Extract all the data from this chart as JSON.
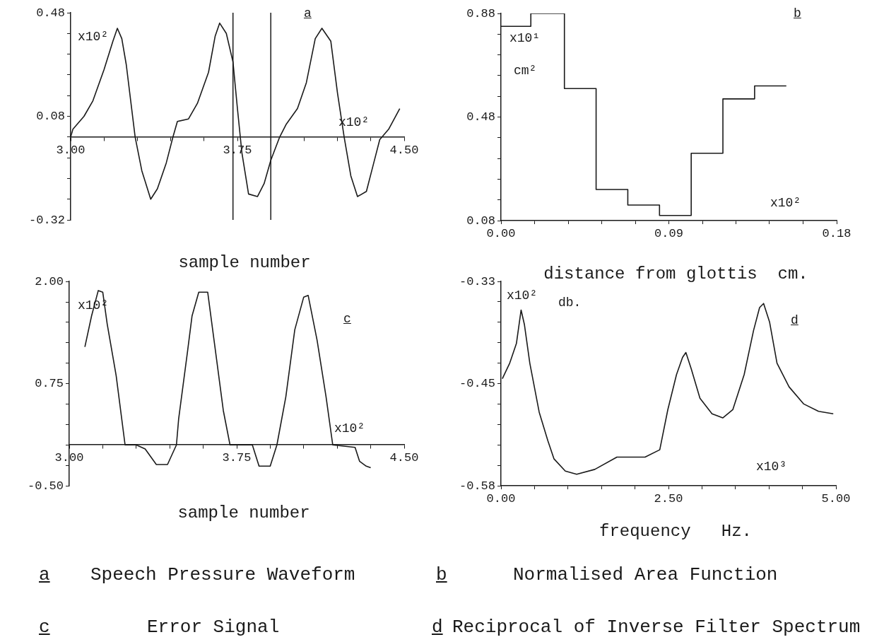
{
  "chart_data": [
    {
      "type": "line",
      "title": "Speech Pressure Waveform",
      "xlabel": "sample number",
      "annotations": [
        "a",
        "a",
        "x10²",
        "x10²"
      ],
      "color": "#1a1a1a",
      "x": [
        3.0,
        3.01,
        3.06,
        3.1,
        3.15,
        3.19,
        3.21,
        3.23,
        3.25,
        3.29,
        3.32,
        3.36,
        3.39,
        3.43,
        3.46,
        3.48,
        3.53,
        3.57,
        3.62,
        3.65,
        3.67,
        3.7,
        3.73,
        3.75,
        3.77,
        3.8,
        3.84,
        3.87,
        3.9,
        3.94,
        3.97,
        4.02,
        4.06,
        4.1,
        4.13,
        4.17,
        4.2,
        4.23,
        4.26,
        4.29,
        4.33,
        4.36,
        4.39,
        4.43,
        4.48
      ],
      "values": [
        0.0,
        0.03,
        0.08,
        0.14,
        0.26,
        0.37,
        0.42,
        0.38,
        0.28,
        0.0,
        -0.13,
        -0.24,
        -0.2,
        -0.1,
        0.0,
        0.06,
        0.07,
        0.13,
        0.25,
        0.39,
        0.44,
        0.4,
        0.29,
        0.11,
        -0.06,
        -0.22,
        -0.23,
        -0.18,
        -0.09,
        0.0,
        0.05,
        0.11,
        0.21,
        0.38,
        0.42,
        0.37,
        0.17,
        0.0,
        -0.15,
        -0.23,
        -0.21,
        -0.11,
        -0.01,
        0.03,
        0.11
      ],
      "xlim": [
        3.0,
        4.5
      ],
      "ylim": [
        -0.32,
        0.48
      ],
      "xticks": [
        {
          "value": 3.0,
          "label": "3.00"
        },
        {
          "value": 3.15,
          "label": null
        },
        {
          "value": 3.3,
          "label": null
        },
        {
          "value": 3.45,
          "label": null
        },
        {
          "value": 3.6,
          "label": null
        },
        {
          "value": 3.75,
          "label": "3.75"
        },
        {
          "value": 3.9,
          "label": null
        },
        {
          "value": 4.05,
          "label": null
        },
        {
          "value": 4.2,
          "label": null
        },
        {
          "value": 4.35,
          "label": null
        },
        {
          "value": 4.5,
          "label": "4.50"
        }
      ],
      "yticks": [
        -0.32,
        {
          "value": -0.24,
          "label": null
        },
        {
          "value": -0.16,
          "label": null
        },
        {
          "value": -0.08,
          "label": null
        },
        {
          "value": 0,
          "label": null
        },
        0.08,
        {
          "value": 0.16,
          "label": null
        },
        {
          "value": 0.24,
          "label": null
        },
        {
          "value": 0.32,
          "label": null
        },
        {
          "value": 0.4,
          "label": null
        },
        0.48
      ],
      "ref_lines": [
        {
          "axis": "x",
          "value": 3.73
        },
        {
          "axis": "x",
          "value": 3.9
        }
      ]
    },
    {
      "type": "step",
      "title": "Normalised Area Function",
      "xlabel": "distance from glottis  cm.",
      "annotations": [
        "b",
        "b",
        "x10¹",
        "cm²",
        "x10²"
      ],
      "color": "#1a1a1a",
      "x": [
        0,
        0.016,
        0.034,
        0.051,
        0.068,
        0.085,
        0.102,
        0.119,
        0.136,
        0.153
      ],
      "values": [
        0.83,
        0.88,
        0.59,
        0.2,
        0.14,
        0.1,
        0.34,
        0.55,
        0.6,
        0.6
      ],
      "xlim": [
        0,
        0.18
      ],
      "ylim": [
        0.08,
        0.88
      ],
      "xticks": [
        {
          "value": 0,
          "label": "0.00"
        },
        {
          "value": 0.018,
          "label": null
        },
        {
          "value": 0.036,
          "label": null
        },
        {
          "value": 0.054,
          "label": null
        },
        {
          "value": 0.072,
          "label": null
        },
        0.09,
        {
          "value": 0.108,
          "label": null
        },
        {
          "value": 0.126,
          "label": null
        },
        {
          "value": 0.144,
          "label": null
        },
        {
          "value": 0.162,
          "label": null
        },
        0.18
      ],
      "yticks": [
        0.08,
        {
          "value": 0.16,
          "label": null
        },
        {
          "value": 0.24,
          "label": null
        },
        {
          "value": 0.32,
          "label": null
        },
        {
          "value": 0.4,
          "label": null
        },
        0.48,
        {
          "value": 0.56,
          "label": null
        },
        {
          "value": 0.64,
          "label": null
        },
        {
          "value": 0.72,
          "label": null
        },
        {
          "value": 0.8,
          "label": null
        },
        0.88
      ]
    },
    {
      "type": "line",
      "title": "Error Signal",
      "xlabel": "sample number",
      "annotations": [
        "c",
        "c",
        "x10²",
        "x10²"
      ],
      "color": "#1a1a1a",
      "x": [
        3.07,
        3.1,
        3.13,
        3.15,
        3.17,
        3.21,
        3.25,
        3.3,
        3.34,
        3.39,
        3.44,
        3.48,
        3.49,
        3.53,
        3.55,
        3.58,
        3.62,
        3.65,
        3.69,
        3.72,
        3.82,
        3.85,
        3.9,
        3.93,
        3.97,
        4.01,
        4.05,
        4.07,
        4.11,
        4.15,
        4.18,
        4.28,
        4.3,
        4.33,
        4.35
      ],
      "values": [
        1.2,
        1.58,
        1.89,
        1.87,
        1.48,
        0.85,
        0.0,
        0.0,
        -0.05,
        -0.24,
        -0.24,
        0.0,
        0.32,
        1.15,
        1.58,
        1.87,
        1.87,
        1.25,
        0.42,
        0.0,
        0.0,
        -0.26,
        -0.26,
        0.0,
        0.59,
        1.41,
        1.81,
        1.83,
        1.28,
        0.59,
        0.0,
        -0.03,
        -0.2,
        -0.26,
        -0.28
      ],
      "xlim": [
        3.0,
        4.5
      ],
      "ylim": [
        -0.5,
        2.0
      ],
      "xticks": [
        {
          "value": 3.0,
          "label": "3.00"
        },
        {
          "value": 3.15,
          "label": null
        },
        {
          "value": 3.3,
          "label": null
        },
        {
          "value": 3.45,
          "label": null
        },
        {
          "value": 3.6,
          "label": null
        },
        {
          "value": 3.75,
          "label": "3.75"
        },
        {
          "value": 3.9,
          "label": null
        },
        {
          "value": 4.05,
          "label": null
        },
        {
          "value": 4.2,
          "label": null
        },
        {
          "value": 4.35,
          "label": null
        },
        {
          "value": 4.5,
          "label": "4.50"
        }
      ],
      "yticks": [
        {
          "value": -0.5,
          "label": "-0.50"
        },
        {
          "value": -0.25,
          "label": null
        },
        {
          "value": 0,
          "label": null
        },
        {
          "value": 0.25,
          "label": null
        },
        {
          "value": 0.5,
          "label": null
        },
        0.75,
        {
          "value": 1.0,
          "label": null
        },
        {
          "value": 1.25,
          "label": null
        },
        {
          "value": 1.5,
          "label": null
        },
        {
          "value": 1.75,
          "label": null
        },
        {
          "value": 2.0,
          "label": "2.00"
        }
      ]
    },
    {
      "type": "line",
      "title": "Reciprocal of Inverse Filter Spectrum",
      "xlabel": "frequency   Hz.",
      "annotations": [
        "d",
        "d",
        "x10²",
        "db.",
        "x10³"
      ],
      "color": "#1a1a1a",
      "x": [
        0.02,
        0.13,
        0.23,
        0.3,
        0.35,
        0.43,
        0.57,
        0.7,
        0.79,
        0.96,
        1.13,
        1.4,
        1.73,
        2.15,
        2.37,
        2.49,
        2.62,
        2.71,
        2.76,
        2.84,
        2.97,
        3.15,
        3.31,
        3.46,
        3.63,
        3.77,
        3.86,
        3.92,
        4.01,
        4.12,
        4.3,
        4.52,
        4.74,
        4.96
      ],
      "values": [
        -0.449,
        -0.43,
        -0.406,
        -0.365,
        -0.383,
        -0.43,
        -0.49,
        -0.525,
        -0.547,
        -0.562,
        -0.566,
        -0.56,
        -0.545,
        -0.545,
        -0.536,
        -0.487,
        -0.444,
        -0.423,
        -0.417,
        -0.437,
        -0.473,
        -0.492,
        -0.497,
        -0.487,
        -0.444,
        -0.39,
        -0.362,
        -0.357,
        -0.38,
        -0.43,
        -0.459,
        -0.48,
        -0.489,
        -0.492
      ],
      "xlim": [
        0,
        5
      ],
      "ylim": [
        -0.58,
        -0.33
      ],
      "xticks": [
        {
          "value": 0,
          "label": "0.00"
        },
        {
          "value": 0.5,
          "label": null
        },
        {
          "value": 1.0,
          "label": null
        },
        {
          "value": 1.5,
          "label": null
        },
        {
          "value": 2.0,
          "label": null
        },
        {
          "value": 2.5,
          "label": "2.50"
        },
        {
          "value": 3.0,
          "label": null
        },
        {
          "value": 3.5,
          "label": null
        },
        {
          "value": 4.0,
          "label": null
        },
        {
          "value": 4.5,
          "label": null
        },
        {
          "value": 5.0,
          "label": "5.00"
        }
      ],
      "yticks": [
        -0.58,
        {
          "value": -0.555,
          "label": null
        },
        {
          "value": -0.53,
          "label": null
        },
        {
          "value": -0.505,
          "label": null
        },
        {
          "value": -0.48,
          "label": null
        },
        {
          "value": -0.455,
          "label": "-0.45"
        },
        {
          "value": -0.43,
          "label": null
        },
        {
          "value": -0.405,
          "label": null
        },
        {
          "value": -0.38,
          "label": null
        },
        {
          "value": -0.355,
          "label": null
        },
        -0.33
      ]
    }
  ]
}
